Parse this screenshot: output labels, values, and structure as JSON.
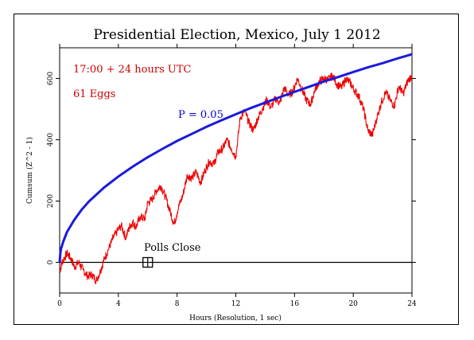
{
  "chart_data": {
    "type": "line",
    "title": "Presidential Election, Mexico, July 1 2012",
    "xlabel": "Hours (Resolution, 1 sec)",
    "ylabel": "Cumsum (Z^2 - 1)",
    "xlim": [
      0,
      24
    ],
    "ylim": [
      -100,
      700
    ],
    "x_ticks": [
      0,
      4,
      8,
      12,
      16,
      20,
      24
    ],
    "y_ticks": [
      0,
      200,
      400,
      600
    ],
    "annotations": {
      "time_window": "17:00 + 24 hours UTC",
      "eggs": "61 Eggs",
      "p_label": "P = 0.05",
      "event_label": "Polls Close"
    },
    "event_marker": {
      "x": 6,
      "y": 0
    },
    "colors": {
      "cumsum": "#ee0000",
      "envelope": "#1a1adc",
      "baseline": "#000000",
      "annotation_red": "#cc0000",
      "annotation_blue": "#0000cc"
    },
    "series": [
      {
        "color": "#ee0000",
        "x": [
          0,
          0.2,
          0.5,
          0.8,
          1.0,
          1.3,
          1.6,
          1.9,
          2.2,
          2.5,
          2.8,
          3.0,
          3.3,
          3.6,
          3.9,
          4.2,
          4.5,
          4.8,
          5.0,
          5.2,
          5.5,
          5.8,
          6.0,
          6.3,
          6.6,
          6.9,
          7.2,
          7.5,
          7.8,
          8.1,
          8.4,
          8.7,
          9.0,
          9.3,
          9.6,
          9.9,
          10.2,
          10.5,
          10.8,
          11.1,
          11.4,
          11.7,
          12.0,
          12.3,
          12.6,
          12.9,
          13.2,
          13.5,
          13.8,
          14.1,
          14.4,
          14.7,
          15.0,
          15.3,
          15.6,
          15.9,
          16.2,
          16.5,
          16.8,
          17.1,
          17.4,
          17.7,
          18.0,
          18.3,
          18.6,
          18.9,
          19.2,
          19.5,
          19.8,
          20.1,
          20.4,
          20.7,
          21.0,
          21.3,
          21.6,
          21.9,
          22.2,
          22.5,
          22.8,
          23.1,
          23.4,
          23.7,
          24.0
        ],
        "y": [
          -30,
          5,
          30,
          10,
          -15,
          0,
          -25,
          -45,
          -40,
          -60,
          -25,
          5,
          40,
          75,
          100,
          120,
          80,
          120,
          130,
          115,
          150,
          140,
          195,
          205,
          235,
          250,
          215,
          170,
          125,
          180,
          220,
          285,
          275,
          295,
          260,
          300,
          330,
          320,
          360,
          370,
          400,
          370,
          345,
          470,
          495,
          455,
          430,
          470,
          500,
          530,
          505,
          535,
          520,
          570,
          545,
          560,
          600,
          565,
          530,
          515,
          565,
          590,
          600,
          595,
          610,
          580,
          570,
          600,
          585,
          560,
          540,
          500,
          430,
          415,
          470,
          520,
          555,
          530,
          510,
          575,
          550,
          590,
          610
        ]
      },
      {
        "name": "P = 0.05",
        "color": "#1a1adc",
        "x": [
          0,
          0.05,
          0.1,
          0.25,
          0.5,
          1,
          1.5,
          2,
          3,
          4,
          5,
          6,
          7,
          8,
          9,
          10,
          11,
          12,
          13,
          14,
          15,
          16,
          17,
          18,
          19,
          20,
          21,
          22,
          23,
          24
        ],
        "y": [
          0,
          31,
          45,
          68,
          99,
          139,
          172,
          199,
          243,
          280,
          313,
          343,
          370,
          396,
          419,
          442,
          463,
          483,
          503,
          521,
          539,
          556,
          573,
          590,
          605,
          621,
          636,
          650,
          665,
          679
        ]
      }
    ]
  }
}
